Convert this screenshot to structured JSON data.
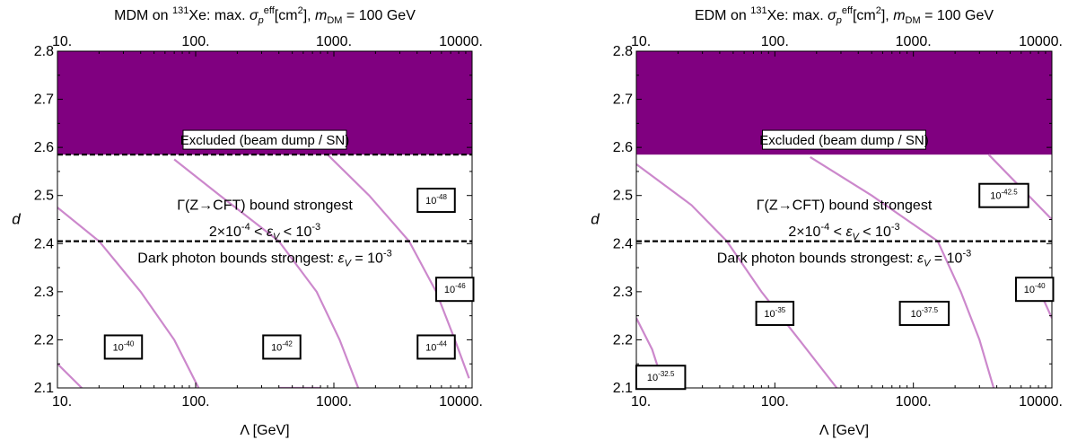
{
  "chart_data": [
    {
      "type": "contour",
      "title_parts": {
        "prefix": "MDM on ",
        "sup_iso": "131",
        "species": "Xe: max. ",
        "sigma": "σ",
        "sub_p": "p",
        "sup_eff": "eff",
        "unit": "[cm",
        "sup_2": "2",
        "unit_end": "], ",
        "m": "m",
        "sub_dm": "DM",
        "mass": " = 100 GeV"
      },
      "xlabel": "Λ [GeV]",
      "ylabel": "d",
      "xscale": "log",
      "xlim": [
        10,
        10000
      ],
      "ylim": [
        2.1,
        2.8
      ],
      "xticks": [
        10,
        100,
        1000,
        10000
      ],
      "xtick_labels": [
        "10.",
        "100.",
        "1000.",
        "10000."
      ],
      "yticks": [
        2.1,
        2.2,
        2.3,
        2.4,
        2.5,
        2.6,
        2.7,
        2.8
      ],
      "ytick_labels": [
        "2.1",
        "2.2",
        "2.3",
        "2.4",
        "2.5",
        "2.6",
        "2.7",
        "2.8"
      ],
      "excluded_region": {
        "d_min": 2.585,
        "d_max": 2.8,
        "label": "Excluded  (beam dump / SN)",
        "color": "#800080"
      },
      "dashed_lines": [
        2.585,
        2.405
      ],
      "region_labels": [
        {
          "text": "Γ(Z→CFT) bound strongest"
        },
        {
          "text_prefix": "2×10",
          "sup": "-4",
          "text_mid": " < ",
          "eps": "ε",
          "sub": "V",
          "text_suffix": " < 10",
          "sup2": "-3"
        },
        {
          "text_prefix": "Dark photon bounds strongest: ",
          "eps": "ε",
          "sub": "V",
          "text_suffix": " = 10",
          "sup2": "-3"
        }
      ],
      "contour_color": "#cc88cc",
      "contours": [
        {
          "label_base": "10",
          "label_exp": "-40",
          "points": [
            [
              10,
              2.475
            ],
            [
              20,
              2.405
            ],
            [
              40,
              2.3
            ],
            [
              70,
              2.2
            ],
            [
              105,
              2.1
            ]
          ]
        },
        {
          "label_base": "10",
          "label_exp": "-42",
          "points": [
            [
              70,
              2.575
            ],
            [
              150,
              2.5
            ],
            [
              400,
              2.405
            ],
            [
              750,
              2.3
            ],
            [
              1100,
              2.2
            ],
            [
              1500,
              2.1
            ]
          ]
        },
        {
          "label_base": "10",
          "label_exp": "-44",
          "points": [
            [
              900,
              2.585
            ],
            [
              1800,
              2.5
            ],
            [
              3500,
              2.405
            ],
            [
              5500,
              2.3
            ],
            [
              7500,
              2.2
            ],
            [
              9500,
              2.12
            ]
          ]
        },
        {
          "label_base": "10",
          "label_exp": "-46",
          "points": [
            [
              6500,
              2.33
            ],
            [
              10000,
              2.285
            ]
          ]
        },
        {
          "label_base": "10",
          "label_exp": "-48",
          "points": []
        },
        {
          "label_base": "",
          "label_exp": "",
          "points": [
            [
              10,
              2.15
            ],
            [
              15,
              2.1
            ]
          ]
        },
        {
          "label_base": "",
          "label_exp": "",
          "points": [
            [
              400,
              2.1
            ],
            [
              800,
              2.1
            ]
          ]
        }
      ],
      "contour_labels": [
        {
          "base": "10",
          "exp": "-40",
          "x": 30,
          "y": 2.185
        },
        {
          "base": "10",
          "exp": "-42",
          "x": 420,
          "y": 2.185
        },
        {
          "base": "10",
          "exp": "-44",
          "x": 5500,
          "y": 2.185
        },
        {
          "base": "10",
          "exp": "-46",
          "x": 7500,
          "y": 2.305
        },
        {
          "base": "10",
          "exp": "-48",
          "x": 5500,
          "y": 2.49
        }
      ]
    },
    {
      "type": "contour",
      "title_parts": {
        "prefix": "EDM on ",
        "sup_iso": "131",
        "species": "Xe: max. ",
        "sigma": "σ",
        "sub_p": "p",
        "sup_eff": "eff",
        "unit": "[cm",
        "sup_2": "2",
        "unit_end": "], ",
        "m": "m",
        "sub_dm": "DM",
        "mass": " = 100 GeV"
      },
      "xlabel": "Λ [GeV]",
      "ylabel": "d",
      "xscale": "log",
      "xlim": [
        10,
        10000
      ],
      "ylim": [
        2.1,
        2.8
      ],
      "xticks": [
        10,
        100,
        1000,
        10000
      ],
      "xtick_labels": [
        "10.",
        "100.",
        "1000.",
        "10000."
      ],
      "yticks": [
        2.1,
        2.2,
        2.3,
        2.4,
        2.5,
        2.6,
        2.7,
        2.8
      ],
      "ytick_labels": [
        "2.1",
        "2.2",
        "2.3",
        "2.4",
        "2.5",
        "2.6",
        "2.7",
        "2.8"
      ],
      "excluded_region": {
        "d_min": 2.585,
        "d_max": 2.8,
        "label": "Excluded  (beam dump / SN)",
        "color": "#800080"
      },
      "dashed_lines": [
        2.405
      ],
      "region_labels": [
        {
          "text": "Γ(Z→CFT) bound strongest"
        },
        {
          "text_prefix": "2×10",
          "sup": "-4",
          "text_mid": " < ",
          "eps": "ε",
          "sub": "V",
          "text_suffix": " < 10",
          "sup2": "-3"
        },
        {
          "text_prefix": "Dark photon bounds strongest: ",
          "eps": "ε",
          "sub": "V",
          "text_suffix": " = 10",
          "sup2": "-3"
        }
      ],
      "contour_color": "#cc88cc",
      "contours": [
        {
          "points": [
            [
              10,
              2.245
            ],
            [
              13,
              2.18
            ],
            [
              16,
              2.1
            ]
          ]
        },
        {
          "points": [
            [
              10,
              2.565
            ],
            [
              25,
              2.48
            ],
            [
              45,
              2.405
            ],
            [
              80,
              2.3
            ],
            [
              150,
              2.2
            ],
            [
              280,
              2.1
            ]
          ]
        },
        {
          "points": [
            [
              180,
              2.58
            ],
            [
              500,
              2.5
            ],
            [
              1000,
              2.44
            ],
            [
              1500,
              2.405
            ],
            [
              2200,
              2.3
            ],
            [
              3000,
              2.2
            ],
            [
              3800,
              2.1
            ]
          ]
        },
        {
          "points": [
            [
              3500,
              2.585
            ],
            [
              10000,
              2.45
            ]
          ]
        },
        {
          "points": [
            [
              7500,
              2.325
            ],
            [
              10000,
              2.245
            ]
          ]
        }
      ],
      "contour_labels": [
        {
          "base": "10",
          "exp": "-32.5",
          "x": 15,
          "y": 2.122
        },
        {
          "base": "10",
          "exp": "-35",
          "x": 100,
          "y": 2.255
        },
        {
          "base": "10",
          "exp": "-37.5",
          "x": 1200,
          "y": 2.255
        },
        {
          "base": "10",
          "exp": "-40",
          "x": 7500,
          "y": 2.305
        },
        {
          "base": "10",
          "exp": "-42.5",
          "x": 4500,
          "y": 2.5
        }
      ]
    }
  ]
}
